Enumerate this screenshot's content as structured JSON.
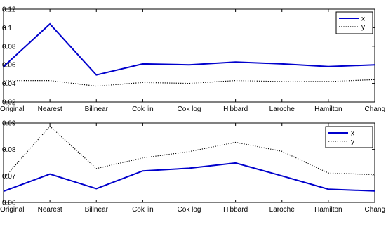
{
  "chart_data": [
    {
      "type": "line",
      "categories": [
        "Original",
        "Nearest",
        "Bilinear",
        "Cok lin",
        "Cok log",
        "Hibbard",
        "Laroche",
        "Hamilton",
        "Chang"
      ],
      "series": [
        {
          "name": "x",
          "color": "#0000cc",
          "style": "solid",
          "values": [
            0.058,
            0.104,
            0.049,
            0.061,
            0.06,
            0.063,
            0.061,
            0.058,
            0.06
          ]
        },
        {
          "name": "y",
          "color": "#000000",
          "style": "dotted",
          "values": [
            0.043,
            0.043,
            0.037,
            0.041,
            0.04,
            0.043,
            0.042,
            0.042,
            0.044
          ]
        }
      ],
      "ylim": [
        0.02,
        0.12
      ],
      "yticks": [
        "0.02",
        "0.04",
        "0.06",
        "0.08",
        "0.1",
        "0.12"
      ],
      "legend": "top-right",
      "grid": false
    },
    {
      "type": "line",
      "categories": [
        "Original",
        "Nearest",
        "Bilinear",
        "Cok lin",
        "Cok log",
        "Hibbard",
        "Laroche",
        "Hamilton",
        "Chang"
      ],
      "series": [
        {
          "name": "x",
          "color": "#0000cc",
          "style": "solid",
          "values": [
            0.0642,
            0.0707,
            0.0652,
            0.0719,
            0.0729,
            0.0749,
            0.07,
            0.065,
            0.0643
          ]
        },
        {
          "name": "y",
          "color": "#000000",
          "style": "dotted",
          "values": [
            0.069,
            0.0888,
            0.0728,
            0.0768,
            0.0792,
            0.0827,
            0.0793,
            0.0711,
            0.0705
          ]
        }
      ],
      "ylim": [
        0.06,
        0.09
      ],
      "yticks": [
        "0.06",
        "0.07",
        "0.08",
        "0.09"
      ],
      "legend": "top-right",
      "grid": false
    }
  ]
}
